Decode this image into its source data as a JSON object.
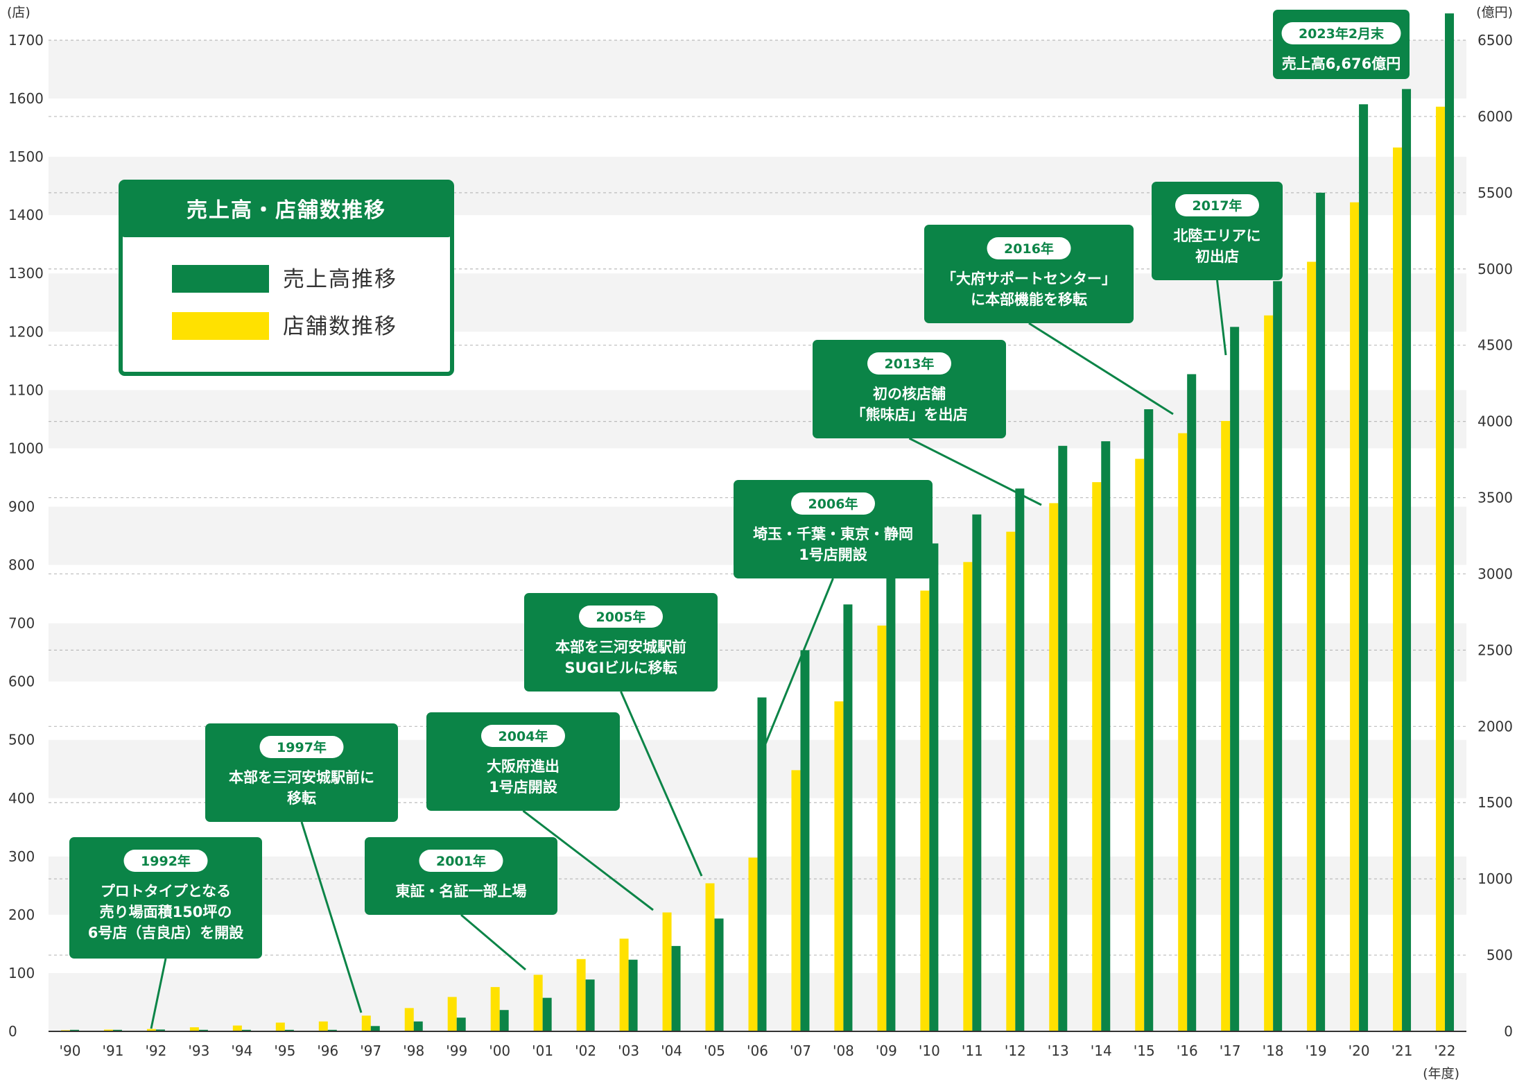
{
  "colors": {
    "sales": "#0b8447",
    "stores": "#ffe100",
    "band": "#f3f3f3",
    "grid": "#bbbbbb",
    "axis": "#333333"
  },
  "legend": {
    "title": "売上高・店舗数推移",
    "items": [
      {
        "label": "売上高推移",
        "color": "#0b8447"
      },
      {
        "label": "店舗数推移",
        "color": "#ffe100"
      }
    ]
  },
  "chart_data": {
    "type": "bar",
    "title": "売上高・店舗数推移",
    "categories": [
      "'90",
      "'91",
      "'92",
      "'93",
      "'94",
      "'95",
      "'96",
      "'97",
      "'98",
      "'99",
      "'00",
      "'01",
      "'02",
      "'03",
      "'04",
      "'05",
      "'06",
      "'07",
      "'08",
      "'09",
      "'10",
      "'11",
      "'12",
      "'13",
      "'14",
      "'15",
      "'16",
      "'17",
      "'18",
      "'19",
      "'20",
      "'21",
      "'22"
    ],
    "series": [
      {
        "name": "店舗数推移",
        "axis": "left",
        "color": "#ffe100",
        "values": [
          2,
          3,
          4,
          7,
          10,
          15,
          17,
          27,
          40,
          59,
          76,
          97,
          124,
          159,
          204,
          254,
          298,
          448,
          566,
          696,
          756,
          805,
          857,
          906,
          942,
          982,
          1026,
          1047,
          1228,
          1320,
          1422,
          1516,
          1586
        ]
      },
      {
        "name": "売上高推移",
        "axis": "right",
        "color": "#0b8447",
        "values": [
          10,
          10,
          12,
          10,
          10,
          10,
          10,
          35,
          65,
          90,
          140,
          220,
          340,
          470,
          560,
          740,
          2190,
          2500,
          2800,
          3000,
          3200,
          3390,
          3560,
          3840,
          3870,
          4080,
          4310,
          4620,
          4920,
          5500,
          6080,
          6180,
          6676
        ]
      }
    ],
    "y_left": {
      "label": "(店)",
      "min": 0,
      "max": 1700,
      "ticks": [
        0,
        100,
        200,
        300,
        400,
        500,
        600,
        700,
        800,
        900,
        1000,
        1100,
        1200,
        1300,
        1400,
        1500,
        1600,
        1700
      ]
    },
    "y_right": {
      "label": "(億円)",
      "min": 0,
      "max": 6500,
      "ticks": [
        0,
        500,
        1000,
        1500,
        2000,
        2500,
        3000,
        3500,
        4000,
        4500,
        5000,
        5500,
        6000,
        6500
      ]
    },
    "xlabel": "(年度)",
    "grid": true,
    "legend_position": "top-left",
    "annotations": [
      {
        "year": "1992年",
        "lines": [
          "プロトタイプとなる",
          "売り場面積150坪の",
          "6号店（吉良店）を開設"
        ],
        "category": "'92"
      },
      {
        "year": "1997年",
        "lines": [
          "本部を三河安城駅前に",
          "移転"
        ],
        "category": "'97"
      },
      {
        "year": "2001年",
        "lines": [
          "東証・名証一部上場"
        ],
        "category": "'01"
      },
      {
        "year": "2004年",
        "lines": [
          "大阪府進出",
          "1号店開設"
        ],
        "category": "'04"
      },
      {
        "year": "2005年",
        "lines": [
          "本部を三河安城駅前",
          "SUGIビルに移転"
        ],
        "category": "'05"
      },
      {
        "year": "2006年",
        "lines": [
          "埼玉・千葉・東京・静岡",
          "1号店開設"
        ],
        "category": "'06"
      },
      {
        "year": "2013年",
        "lines": [
          "初の核店舗",
          "「熊味店」を出店"
        ],
        "category": "'13"
      },
      {
        "year": "2016年",
        "lines": [
          "「大府サポートセンター」",
          "に本部機能を移転"
        ],
        "category": "'16"
      },
      {
        "year": "2017年",
        "lines": [
          "北陸エリアに",
          "初出店"
        ],
        "category": "'17"
      },
      {
        "year": "2023年2月末",
        "lines": [
          "売上高6,676億円"
        ],
        "category": "'22"
      }
    ]
  }
}
